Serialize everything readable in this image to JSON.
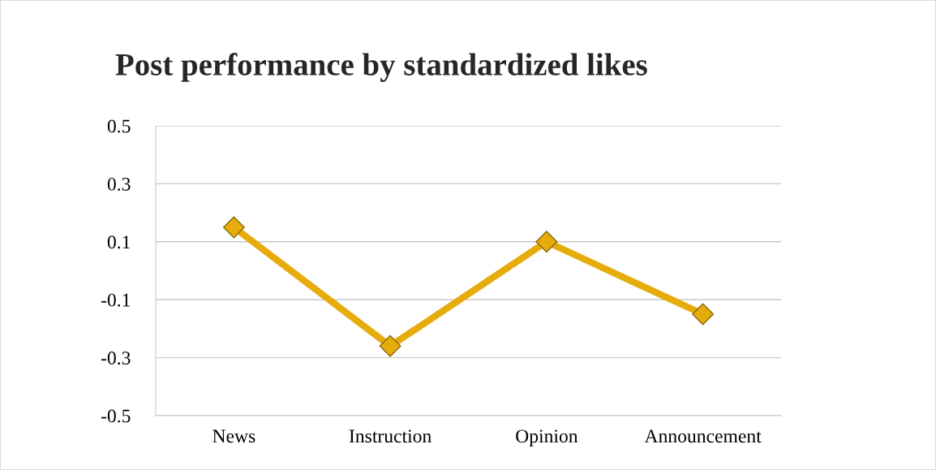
{
  "chart_data": {
    "type": "line",
    "title": "Post performance by standardized likes",
    "categories": [
      "News",
      "Instruction",
      "Opinion",
      "Announcement"
    ],
    "series": [
      {
        "color": "#e6ac0c",
        "values": [
          0.15,
          -0.26,
          0.1,
          -0.15
        ]
      }
    ],
    "ylim": [
      -0.5,
      0.5
    ],
    "yticks": [
      -0.5,
      -0.3,
      -0.1,
      0.1,
      0.3,
      0.5
    ],
    "grid": "y",
    "marker": "diamond",
    "line_style": "solid",
    "legend": false
  }
}
